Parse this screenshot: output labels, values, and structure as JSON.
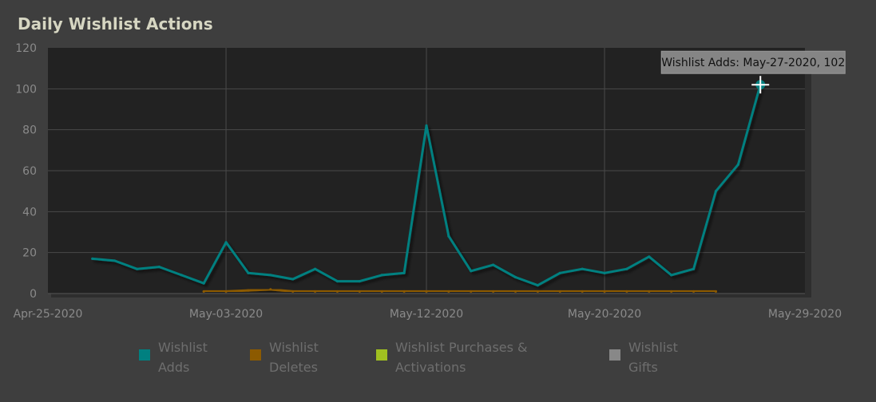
{
  "title": "Daily Wishlist Actions",
  "chart_data": {
    "type": "line",
    "title": "Daily Wishlist Actions",
    "xlabel": "",
    "ylabel": "",
    "xlim": [
      "2020-04-25",
      "2020-05-29"
    ],
    "ylim": [
      0,
      120
    ],
    "y_ticks": [
      "0",
      "20",
      "40",
      "60",
      "80",
      "100",
      "120"
    ],
    "x_ticks": [
      "Apr-25-2020",
      "May-03-2020",
      "May-12-2020",
      "May-20-2020",
      "May-29-2020"
    ],
    "grid": true,
    "legend_position": "bottom",
    "series": [
      {
        "name": "Wishlist Adds",
        "color": "#008080",
        "x": [
          "2020-04-27",
          "2020-04-28",
          "2020-04-29",
          "2020-04-30",
          "2020-05-01",
          "2020-05-02",
          "2020-05-03",
          "2020-05-04",
          "2020-05-05",
          "2020-05-06",
          "2020-05-07",
          "2020-05-08",
          "2020-05-09",
          "2020-05-10",
          "2020-05-11",
          "2020-05-12",
          "2020-05-13",
          "2020-05-14",
          "2020-05-15",
          "2020-05-16",
          "2020-05-17",
          "2020-05-18",
          "2020-05-19",
          "2020-05-20",
          "2020-05-21",
          "2020-05-22",
          "2020-05-23",
          "2020-05-24",
          "2020-05-25",
          "2020-05-26",
          "2020-05-27"
        ],
        "values": [
          17,
          16,
          12,
          13,
          9,
          5,
          25,
          10,
          9,
          7,
          12,
          6,
          6,
          9,
          10,
          82,
          28,
          11,
          14,
          8,
          4,
          10,
          12,
          10,
          12,
          18,
          9,
          12,
          50,
          63,
          102
        ]
      },
      {
        "name": "Wishlist Deletes",
        "color": "#8c5a00",
        "x": [
          "2020-05-02",
          "2020-05-03",
          "2020-05-04",
          "2020-05-05",
          "2020-05-06",
          "2020-05-07",
          "2020-05-08",
          "2020-05-09",
          "2020-05-10",
          "2020-05-11",
          "2020-05-12",
          "2020-05-13",
          "2020-05-14",
          "2020-05-15",
          "2020-05-16",
          "2020-05-17",
          "2020-05-18",
          "2020-05-19",
          "2020-05-20",
          "2020-05-21",
          "2020-05-22",
          "2020-05-23",
          "2020-05-24",
          "2020-05-25"
        ],
        "values": [
          1,
          1,
          1.5,
          2,
          1,
          1,
          1,
          1,
          1,
          1,
          1,
          1,
          1,
          1,
          1,
          1,
          1,
          1,
          1,
          1,
          1,
          1,
          1,
          1
        ]
      },
      {
        "name": "Wishlist Purchases & Activations",
        "color": "#a0c020",
        "x": [],
        "values": []
      },
      {
        "name": "Wishlist Gifts",
        "color": "#888888",
        "x": [],
        "values": []
      }
    ],
    "tooltip": {
      "text": "Wishlist Adds: May-27-2020, 102",
      "series": "Wishlist Adds",
      "x": "2020-05-27",
      "y": 102
    }
  },
  "legend": [
    {
      "name": "Wishlist Adds",
      "lines": [
        "Wishlist",
        "Adds"
      ],
      "color": "#008080"
    },
    {
      "name": "Wishlist Deletes",
      "lines": [
        "Wishlist",
        "Deletes"
      ],
      "color": "#8c5a00"
    },
    {
      "name": "Wishlist Purchases & Activations",
      "lines": [
        "Wishlist Purchases &",
        "Activations"
      ],
      "color": "#a0c020"
    },
    {
      "name": "Wishlist Gifts",
      "lines": [
        "Wishlist",
        "Gifts"
      ],
      "color": "#888888"
    }
  ]
}
